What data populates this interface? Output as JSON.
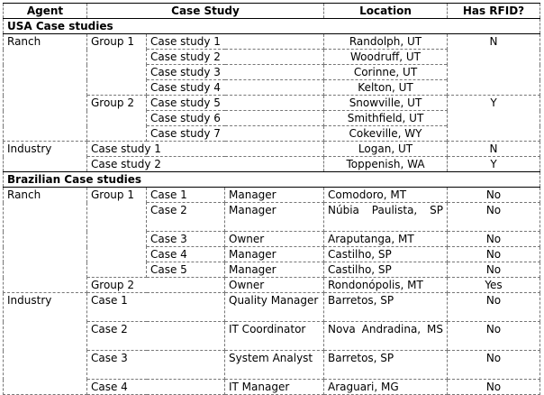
{
  "headers": {
    "agent": "Agent",
    "case_study": "Case Study",
    "location": "Location",
    "has_rfid": "Has RFID?"
  },
  "usa": {
    "title": "USA Case studies",
    "ranch": {
      "agent": "Ranch",
      "group1": {
        "label": "Group 1",
        "cases": [
          {
            "name": "Case study 1",
            "location": "Randolph, UT"
          },
          {
            "name": "Case study 2",
            "location": "Woodruff, UT"
          },
          {
            "name": "Case study 3",
            "location": "Corinne, UT"
          },
          {
            "name": "Case study 4",
            "location": "Kelton, UT"
          }
        ],
        "rfid": "N"
      },
      "group2": {
        "label": "Group 2",
        "cases": [
          {
            "name": "Case study 5",
            "location": "Snowville, UT"
          },
          {
            "name": "Case study 6",
            "location": "Smithfield, UT"
          },
          {
            "name": "Case study 7",
            "location": "Cokeville, WY"
          }
        ],
        "rfid": "Y"
      }
    },
    "industry": {
      "agent": "Industry",
      "cases": [
        {
          "name": "Case study 1",
          "location": "Logan, UT",
          "rfid": "N"
        },
        {
          "name": "Case study 2",
          "location": "Toppenish, WA",
          "rfid": "Y"
        }
      ]
    }
  },
  "brazil": {
    "title": "Brazilian Case studies",
    "ranch": {
      "agent": "Ranch",
      "group1": {
        "label": "Group 1",
        "cases": [
          {
            "name": "Case 1",
            "role": "Manager",
            "location": "Comodoro, MT",
            "rfid": "No"
          },
          {
            "name": "Case 2",
            "role": "Manager",
            "location": "Núbia Paulista, SP",
            "rfid": "No"
          },
          {
            "name": "Case 3",
            "role": "Owner",
            "location": "Araputanga, MT",
            "rfid": "No"
          },
          {
            "name": "Case 4",
            "role": "Manager",
            "location": "Castilho, SP",
            "rfid": "No"
          },
          {
            "name": "Case 5",
            "role": "Manager",
            "location": "Castilho, SP",
            "rfid": "No"
          }
        ]
      },
      "group2": {
        "label": "Group 2",
        "role": "Owner",
        "location": "Rondonópolis, MT",
        "rfid": "Yes"
      }
    },
    "industry": {
      "agent": "Industry",
      "cases": [
        {
          "name": "Case 1",
          "role": "Quality Manager",
          "location": "Barretos, SP",
          "rfid": "No"
        },
        {
          "name": "Case 2",
          "role": "IT Coordinator",
          "location": "Nova Andradina, MS",
          "rfid": "No"
        },
        {
          "name": "Case 3",
          "role": "System Analyst",
          "location": "Barretos, SP",
          "rfid": "No"
        },
        {
          "name": "Case 4",
          "role": "IT Manager",
          "location": "Araguari, MG",
          "rfid": "No"
        }
      ]
    }
  }
}
